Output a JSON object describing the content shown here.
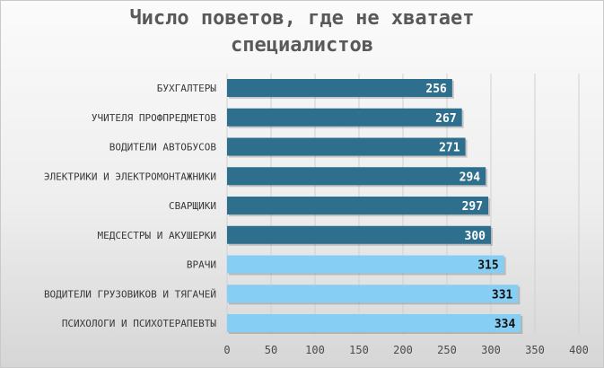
{
  "chart_data": {
    "type": "bar",
    "orientation": "horizontal",
    "title_line1": "Число поветов, где не хватает",
    "title_line2": "специалистов",
    "categories": [
      "БУХГАЛТЕРЫ",
      "УЧИТЕЛЯ ПРОФПРЕДМЕТОВ",
      "ВОДИТЕЛИ АВТОБУСОВ",
      "ЭЛЕКТРИКИ И ЭЛЕКТРОМОНТАЖНИКИ",
      "СВАРЩИКИ",
      "МЕДСЕСТРЫ И АКУШЕРКИ",
      "ВРАЧИ",
      "ВОДИТЕЛИ ГРУЗОВИКОВ И ТЯГАЧЕЙ",
      "ПСИХОЛОГИ И ПСИХОТЕРАПЕВТЫ"
    ],
    "values": [
      256,
      267,
      271,
      294,
      297,
      300,
      315,
      331,
      334
    ],
    "bar_colors": [
      "#2e6f8e",
      "#2e6f8e",
      "#2e6f8e",
      "#2e6f8e",
      "#2e6f8e",
      "#2e6f8e",
      "#87cef5",
      "#87cef5",
      "#87cef5"
    ],
    "label_colors": [
      "#ffffff",
      "#ffffff",
      "#ffffff",
      "#ffffff",
      "#ffffff",
      "#ffffff",
      "#111111",
      "#111111",
      "#111111"
    ],
    "xlim": [
      0,
      400
    ],
    "xticks": [
      0,
      50,
      100,
      150,
      200,
      250,
      300,
      350,
      400
    ],
    "grid": "vertical",
    "data_labels": "inside-end"
  }
}
